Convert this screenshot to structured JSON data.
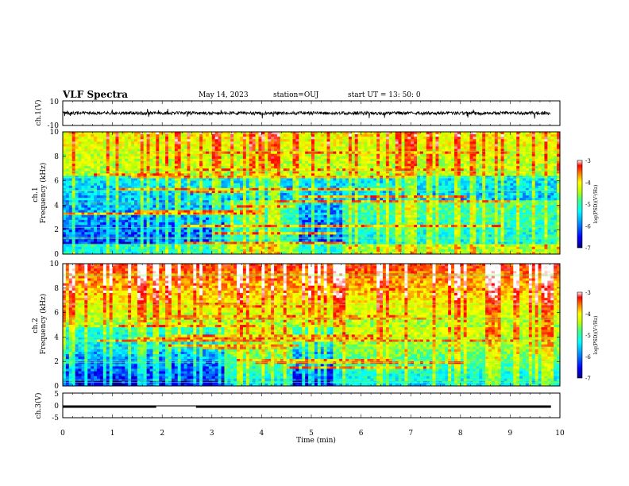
{
  "header": {
    "title": "VLF Spectra",
    "date": "May 14, 2023",
    "station": "station=OUJ",
    "start": "start UT = 13: 50: 0"
  },
  "chart_data": [
    {
      "type": "line",
      "name": "ch1-waveform",
      "ylabel": "ch.1(V)",
      "ylim": [
        -10,
        10
      ],
      "yticks": [
        "10",
        "-10"
      ],
      "xlim": [
        0,
        10
      ]
    },
    {
      "type": "heatmap",
      "name": "ch1-spectrogram",
      "ylabel_top": "ch.1",
      "ylabel": "Frequency (kHz)",
      "ylim": [
        0,
        10
      ],
      "yticks": [
        "0",
        "2",
        "4",
        "6",
        "8",
        "10"
      ],
      "xlim": [
        0,
        10
      ],
      "colorbar": {
        "label": "log(PSD)(V²/Hz)",
        "range": [
          -7,
          -3
        ],
        "ticks": [
          "-3",
          "-4",
          "-5",
          "-6",
          "-7"
        ]
      }
    },
    {
      "type": "heatmap",
      "name": "ch2-spectrogram",
      "ylabel_top": "ch.2",
      "ylabel": "Frequency (kHz)",
      "ylim": [
        0,
        10
      ],
      "yticks": [
        "0",
        "2",
        "4",
        "6",
        "8",
        "10"
      ],
      "xlim": [
        0,
        10
      ],
      "colorbar": {
        "label": "log(PSD)(V²/Hz)",
        "range": [
          -7,
          -3
        ],
        "ticks": [
          "-3",
          "-4",
          "-5",
          "-6",
          "-7"
        ]
      }
    },
    {
      "type": "line",
      "name": "ch3-trace",
      "ylabel": "ch.3(V)",
      "ylim": [
        -5,
        5
      ],
      "yticks": [
        "5",
        "0",
        "-5"
      ],
      "xlim": [
        0,
        10
      ],
      "xlabel": "Time (min)",
      "xticks": [
        "0",
        "1",
        "2",
        "3",
        "4",
        "5",
        "6",
        "7",
        "8",
        "9",
        "10"
      ],
      "level": -0.5
    }
  ],
  "colors": {
    "scale": [
      "#000080",
      "#0000ff",
      "#00a0ff",
      "#00ffff",
      "#40ff80",
      "#c0ff00",
      "#ffff00",
      "#ff8000",
      "#ff0000",
      "#ffffff"
    ]
  }
}
